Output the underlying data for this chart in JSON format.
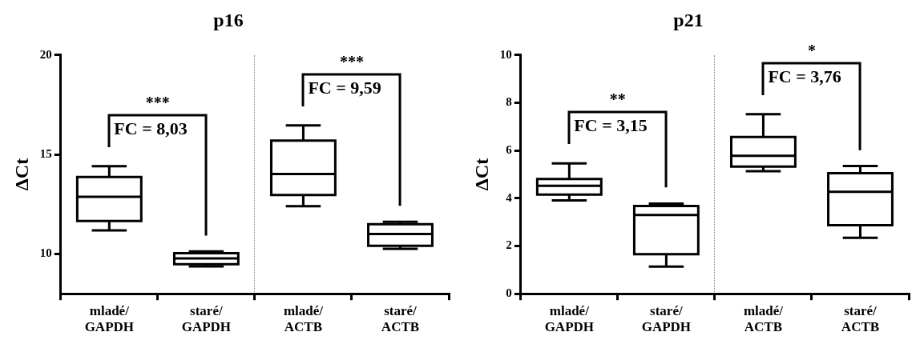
{
  "chart_data": [
    {
      "type": "box",
      "title": "p16",
      "ylabel": "ΔCt",
      "categories": [
        "mladé/GAPDH",
        "staré/GAPDH",
        "mladé/ACTB",
        "staré/ACTB"
      ],
      "boxes": [
        {
          "low": 11.19,
          "q1": 11.66,
          "median": 12.87,
          "q3": 13.87,
          "high": 14.41
        },
        {
          "low": 9.38,
          "q1": 9.49,
          "median": 9.78,
          "q3": 10.04,
          "high": 10.13
        },
        {
          "low": 12.4,
          "q1": 12.96,
          "median": 14.02,
          "q3": 15.7,
          "high": 16.46
        },
        {
          "low": 10.26,
          "q1": 10.41,
          "median": 11.0,
          "q3": 11.5,
          "high": 11.62
        }
      ],
      "ylim": [
        8,
        20
      ],
      "yticks": [
        10,
        15,
        20
      ],
      "grid": false,
      "annotations": [
        "***",
        "FC = 8,03",
        "***",
        "FC = 9,59"
      ]
    },
    {
      "type": "box",
      "title": "p21",
      "ylabel": "ΔCt",
      "categories": [
        "mladé/GAPDH",
        "staré/GAPDH",
        "mladé/ACTB",
        "staré/ACTB"
      ],
      "boxes": [
        {
          "low": 3.91,
          "q1": 4.15,
          "median": 4.52,
          "q3": 4.81,
          "high": 5.46
        },
        {
          "low": 1.14,
          "q1": 1.66,
          "median": 3.3,
          "q3": 3.68,
          "high": 3.78
        },
        {
          "low": 5.13,
          "q1": 5.33,
          "median": 5.78,
          "q3": 6.57,
          "high": 7.52
        },
        {
          "low": 2.34,
          "q1": 2.87,
          "median": 4.27,
          "q3": 5.05,
          "high": 5.35
        }
      ],
      "ylim": [
        0,
        10
      ],
      "yticks": [
        0,
        2,
        4,
        6,
        8,
        10
      ],
      "grid": false,
      "annotations": [
        "**",
        "FC = 3,15",
        "*",
        "FC = 3,76"
      ]
    }
  ]
}
